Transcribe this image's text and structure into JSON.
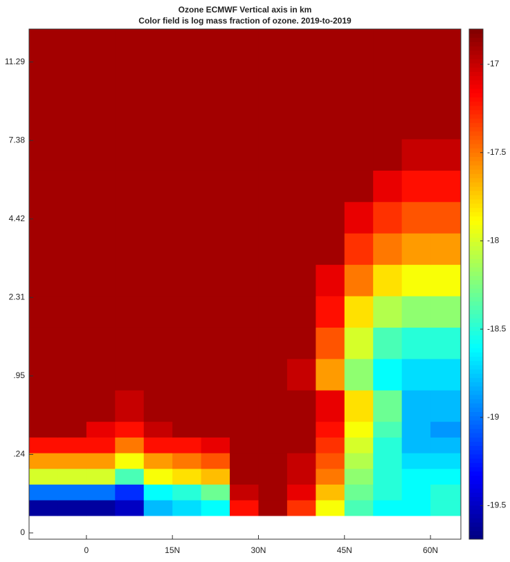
{
  "chart_data": {
    "type": "heatmap",
    "title": "Ozone ECMWF Vertical axis in km",
    "subtitle": "Color field is log mass fraction of ozone.  2019-to-2019",
    "xlim": [
      -10,
      65.3
    ],
    "xticks": [
      0,
      {
        "value": 15,
        "label": "15N"
      },
      {
        "value": 30,
        "label": "30N"
      },
      {
        "value": 45,
        "label": "45N"
      },
      {
        "value": 60,
        "label": "60N"
      }
    ],
    "ylim": [
      -0.4,
      32.1
    ],
    "yticks": [
      0,
      {
        "value": 5,
        "label": ".24"
      },
      {
        "value": 10,
        "label": ".95"
      },
      {
        "value": 15,
        "label": "2.31"
      },
      {
        "value": 20,
        "label": "4.42"
      },
      {
        "value": 25,
        "label": "7.38"
      },
      {
        "value": 30,
        "label": "11.29"
      }
    ],
    "xbins": [
      -10,
      -5,
      0,
      5,
      10,
      15,
      20,
      25,
      30,
      35,
      40,
      45,
      50,
      55,
      60,
      65.3
    ],
    "ybins": [
      1.1,
      2.1,
      3.1,
      4.1,
      5.1,
      6.1,
      7.1,
      9.1,
      11.1,
      13.1,
      15.1,
      17.1,
      19.1,
      21.1,
      23.1,
      25.1,
      32.1
    ],
    "z": [
      [
        -19.6,
        -19.6,
        -19.6,
        -19.5,
        -18.8,
        -18.7,
        -18.6,
        -17.2,
        -16.9,
        -17.3,
        -17.9,
        -18.4,
        -18.6,
        -18.6,
        -18.5
      ],
      [
        -19.0,
        -19.0,
        -19.0,
        -19.2,
        -18.6,
        -18.5,
        -18.3,
        -17.0,
        -16.9,
        -17.1,
        -17.7,
        -18.3,
        -18.5,
        -18.6,
        -18.5
      ],
      [
        -18.0,
        -18.0,
        -18.0,
        -18.4,
        -17.9,
        -17.8,
        -17.7,
        -16.9,
        -16.9,
        -17.0,
        -17.5,
        -18.2,
        -18.5,
        -18.6,
        -18.6
      ],
      [
        -17.6,
        -17.6,
        -17.6,
        -17.9,
        -17.6,
        -17.5,
        -17.4,
        -16.9,
        -16.9,
        -17.0,
        -17.4,
        -18.1,
        -18.5,
        -18.7,
        -18.7
      ],
      [
        -17.2,
        -17.2,
        -17.2,
        -17.5,
        -17.2,
        -17.2,
        -17.1,
        -16.9,
        -16.9,
        -16.9,
        -17.3,
        -18.0,
        -18.5,
        -18.8,
        -18.8
      ],
      [
        -16.9,
        -16.9,
        -17.1,
        -17.2,
        -17.0,
        -16.9,
        -16.9,
        -16.9,
        -16.9,
        -16.9,
        -17.2,
        -17.9,
        -18.4,
        -18.8,
        -18.9
      ],
      [
        -16.9,
        -16.9,
        -16.9,
        -17.0,
        -16.9,
        -16.9,
        -16.9,
        -16.9,
        -16.9,
        -16.9,
        -17.1,
        -17.8,
        -18.3,
        -18.8,
        -18.8
      ],
      [
        -16.9,
        -16.9,
        -16.9,
        -16.9,
        -16.9,
        -16.9,
        -16.9,
        -16.9,
        -16.9,
        -17.0,
        -17.6,
        -18.2,
        -18.6,
        -18.7,
        -18.7
      ],
      [
        -16.9,
        -16.9,
        -16.9,
        -16.9,
        -16.9,
        -16.9,
        -16.9,
        -16.9,
        -16.9,
        -16.9,
        -17.4,
        -18.0,
        -18.4,
        -18.5,
        -18.5
      ],
      [
        -16.9,
        -16.9,
        -16.9,
        -16.9,
        -16.9,
        -16.9,
        -16.9,
        -16.9,
        -16.9,
        -16.9,
        -17.2,
        -17.8,
        -18.1,
        -18.2,
        -18.2
      ],
      [
        -16.9,
        -16.9,
        -16.9,
        -16.9,
        -16.9,
        -16.9,
        -16.9,
        -16.9,
        -16.9,
        -16.9,
        -17.1,
        -17.5,
        -17.8,
        -17.9,
        -17.9
      ],
      [
        -16.9,
        -16.9,
        -16.9,
        -16.9,
        -16.9,
        -16.9,
        -16.9,
        -16.9,
        -16.9,
        -16.9,
        -16.9,
        -17.3,
        -17.5,
        -17.6,
        -17.6
      ],
      [
        -16.9,
        -16.9,
        -16.9,
        -16.9,
        -16.9,
        -16.9,
        -16.9,
        -16.9,
        -16.9,
        -16.9,
        -16.9,
        -17.1,
        -17.3,
        -17.4,
        -17.4
      ],
      [
        -16.9,
        -16.9,
        -16.9,
        -16.9,
        -16.9,
        -16.9,
        -16.9,
        -16.9,
        -16.9,
        -16.9,
        -16.9,
        -16.9,
        -17.1,
        -17.2,
        -17.2
      ],
      [
        -16.9,
        -16.9,
        -16.9,
        -16.9,
        -16.9,
        -16.9,
        -16.9,
        -16.9,
        -16.9,
        -16.9,
        -16.9,
        -16.9,
        -16.9,
        -17.0,
        -17.0
      ],
      [
        -16.9,
        -16.9,
        -16.9,
        -16.9,
        -16.9,
        -16.9,
        -16.9,
        -16.9,
        -16.9,
        -16.9,
        -16.9,
        -16.9,
        -16.9,
        -16.9,
        -16.9
      ]
    ],
    "clim": [
      -19.69,
      -16.8
    ],
    "cticks": [
      -17,
      -17.5,
      -18,
      -18.5,
      -19,
      -19.5
    ],
    "colormap": "jet"
  }
}
